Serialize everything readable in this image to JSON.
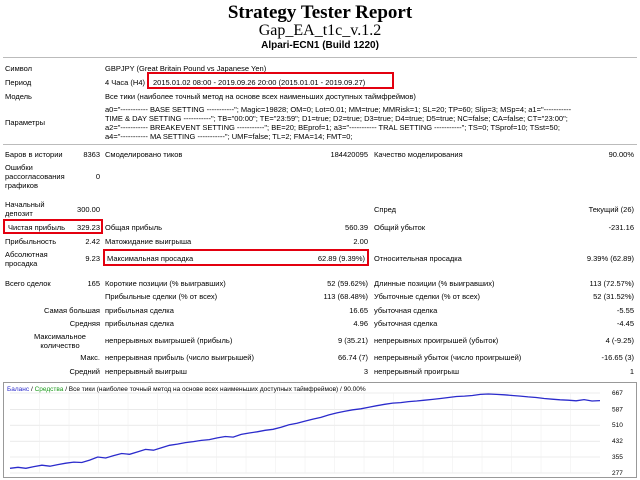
{
  "report": {
    "title": "Strategy Tester Report",
    "ea_name": "Gap_EA_t1c_v.1.2",
    "server": "Alpari-ECN1 (Build 1220)"
  },
  "info": {
    "symbol_label": "Символ",
    "symbol": "GBPJPY (Great Britain Pound vs Japanese Yen)",
    "period_label": "Период",
    "period_prefix": "4 Часа (H4)",
    "period_value": "2015.01.02 08:00 - 2019.09.26 20:00 (2015.01.01 - 2019.09.27)",
    "model_label": "Модель",
    "model": "Все тики (наиболее точный метод на основе всех наименьших доступных таймфреймов)",
    "params_label": "Параметры",
    "params_lines": [
      "a0=\"----------- BASE SETTING -----------\"; Magic=19828; OM=0; Lot=0.01; MM=true; MMRisk=1; SL=20; TP=60; Slip=3; MSp=4; a1=\"-----------",
      "TIME & DAY SETTING -----------\"; TB=\"00:00\"; TE=\"23:59\"; D1=true; D2=true; D3=true; D4=true; D5=true; NC=false; CA=false; CT=\"23:00\";",
      "a2=\"----------- BREAKEVENT SETTING -----------\"; BE=20; BEprof=1; a3=\"----------- TRAL SETTING -----------\"; TS=0; TSprof=10; TSst=50;",
      "a4=\"----------- MA SETTING -----------\"; UMF=false; TL=2; FMA=14; FMT=0;"
    ]
  },
  "stats": {
    "bars_label": "Баров в истории",
    "bars": "8363",
    "ticks_label": "Смоделировано тиков",
    "ticks": "184420095",
    "quality_label": "Качество моделирования",
    "quality": "90.00%",
    "errors_label": "Ошибки рассогласования графиков",
    "errors": "0",
    "deposit_label": "Начальный депозит",
    "deposit": "300.00",
    "spread_label": "Спред",
    "spread": "Текущий (26)",
    "net_label": "Чистая прибыль",
    "net": "329.23",
    "gross_profit_label": "Общая прибыль",
    "gross_profit": "560.39",
    "gross_loss_label": "Общий убыток",
    "gross_loss": "-231.16",
    "pf_label": "Прибыльность",
    "pf": "2.42",
    "exp_label": "Матожидание выигрыша",
    "exp": "2.00",
    "abs_dd_label": "Абсолютная просадка",
    "abs_dd": "9.23",
    "max_dd_label": "Максимальная просадка",
    "max_dd": "62.89 (9.39%)",
    "rel_dd_label": "Относительная просадка",
    "rel_dd": "9.39% (62.89)",
    "total_label": "Всего сделок",
    "total": "165",
    "short_label": "Короткие позиции (% выигравших)",
    "short": "52 (59.62%)",
    "long_label": "Длинные позиции (% выигравших)",
    "long": "113 (72.57%)",
    "profit_trades_label": "Прибыльные сделки (% от всех)",
    "profit_trades": "113 (68.48%)",
    "loss_trades_label": "Убыточные сделки (% от всех)",
    "loss_trades": "52 (31.52%)",
    "largest_label": "Самая большая",
    "largest_p_label": "прибыльная сделка",
    "largest_p": "16.65",
    "largest_l_label": "убыточная сделка",
    "largest_l": "-5.55",
    "avg_label": "Средняя",
    "avg_p_label": "прибыльная сделка",
    "avg_p": "4.96",
    "avg_l_label": "убыточная сделка",
    "avg_l": "-4.45",
    "maxcnt_label": "Максимальное количество",
    "maxcnt_w_label": "непрерывных выигрышей (прибыль)",
    "maxcnt_w": "9 (35.21)",
    "maxcnt_l_label": "непрерывных проигрышей (убыток)",
    "maxcnt_l": "4 (-9.25)",
    "max_label": "Макс.",
    "max_w_label": "непрерывная прибыль (число выигрышей)",
    "max_w": "66.74 (7)",
    "max_l_label": "непрерывный убыток (число проигрышей)",
    "max_l": "-16.65 (3)",
    "avgc_label": "Средний",
    "avgc_w_label": "непрерывный выигрыш",
    "avgc_w": "3",
    "avgc_l_label": "непрерывный проигрыш",
    "avgc_l": "1"
  },
  "chart_data": {
    "type": "line",
    "legend_balance": "Баланс",
    "legend_equity": "Средства",
    "legend_rest": "/ Все тики (наиболее точный метод на основе всех наименьших доступных таймфреймов) / 90.00%",
    "y_ticks": [
      "667",
      "587",
      "510",
      "432",
      "355",
      "277"
    ],
    "ylim": [
      277,
      667
    ],
    "series": [
      {
        "name": "Баланс",
        "color": "#2b2bcc",
        "values": [
          300,
          305,
          300,
          308,
          315,
          310,
          318,
          325,
          330,
          328,
          340,
          355,
          350,
          362,
          372,
          368,
          380,
          392,
          388,
          400,
          412,
          418,
          425,
          430,
          436,
          440,
          448,
          455,
          452,
          465,
          472,
          478,
          485,
          490,
          500,
          512,
          520,
          530,
          540,
          548,
          560,
          570,
          578,
          585,
          590,
          598,
          605,
          612,
          618,
          620,
          625,
          628,
          632,
          636,
          640,
          645,
          650,
          652,
          655,
          660,
          662,
          660,
          658,
          655,
          652,
          648,
          645,
          640,
          637,
          634,
          632,
          629,
          635,
          628,
          630
        ]
      }
    ]
  }
}
